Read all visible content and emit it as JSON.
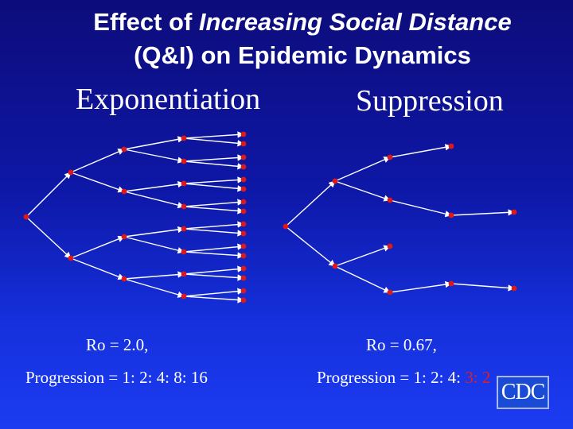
{
  "title": {
    "prefix": "Effect of ",
    "emphasis": "Increasing Social Distance",
    "line2": "(Q&I) on Epidemic Dynamics"
  },
  "exponentiation": {
    "heading": "Exponentiation",
    "ro_label": "Ro = 2.0,",
    "progression_label": "Progression = 1: 2: 4: 8: 16"
  },
  "suppression": {
    "heading": "Suppression",
    "ro_label": "Ro = 0.67,",
    "progression_prefix": "Progression = 1: 2: 4: ",
    "progression_highlight": "3: 2"
  },
  "logo": {
    "text": "CDC"
  },
  "colors": {
    "node": "#e01818",
    "edge": "#ffffff",
    "highlight": "#e02020"
  }
}
